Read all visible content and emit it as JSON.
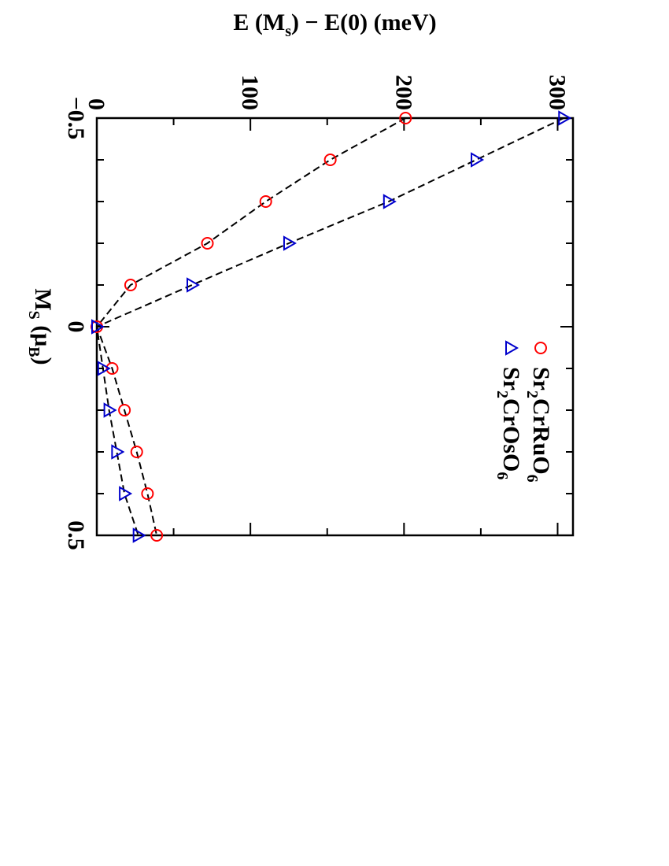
{
  "chart_data": {
    "type": "scatter",
    "orientation_note_rotation": "rotated 90 degrees clockwise",
    "xlabel": {
      "main": "M",
      "sub": "S",
      "rest": " (μ",
      "sub2": "B",
      "close": ")"
    },
    "ylabel": {
      "prefix": "E (M",
      "sub": "s",
      "suffix": ") − E(0)  (meV)"
    },
    "xlim": [
      -0.5,
      0.5
    ],
    "ylim": [
      0,
      310
    ],
    "x_ticks": [
      {
        "value": -0.5,
        "label": "−0.5"
      },
      {
        "value": 0,
        "label": "0"
      },
      {
        "value": 0.5,
        "label": "0.5"
      }
    ],
    "y_ticks": [
      {
        "value": 0,
        "label": "0"
      },
      {
        "value": 100,
        "label": "100"
      },
      {
        "value": 200,
        "label": "200"
      },
      {
        "value": 300,
        "label": "300"
      }
    ],
    "legend_position": "upper-right",
    "series": [
      {
        "name": {
          "a": "Sr",
          "s1": "2",
          "b": "CrRuO",
          "s2": "6"
        },
        "marker": "circle",
        "color": "#ff0000",
        "x": [
          -0.5,
          -0.4,
          -0.3,
          -0.2,
          -0.1,
          0,
          0.1,
          0.2,
          0.3,
          0.4,
          0.5
        ],
        "y": [
          201,
          152,
          110,
          72,
          22,
          0,
          10,
          18,
          26,
          33,
          39
        ]
      },
      {
        "name": {
          "a": "Sr",
          "s1": "2",
          "b": "CrOsO",
          "s2": "6"
        },
        "marker": "triangle",
        "color": "#0000cc",
        "x": [
          -0.5,
          -0.4,
          -0.3,
          -0.2,
          -0.1,
          0,
          0.1,
          0.2,
          0.3,
          0.4,
          0.5
        ],
        "y": [
          304,
          247,
          190,
          125,
          62,
          0,
          4,
          8,
          13,
          18,
          27
        ]
      }
    ]
  }
}
